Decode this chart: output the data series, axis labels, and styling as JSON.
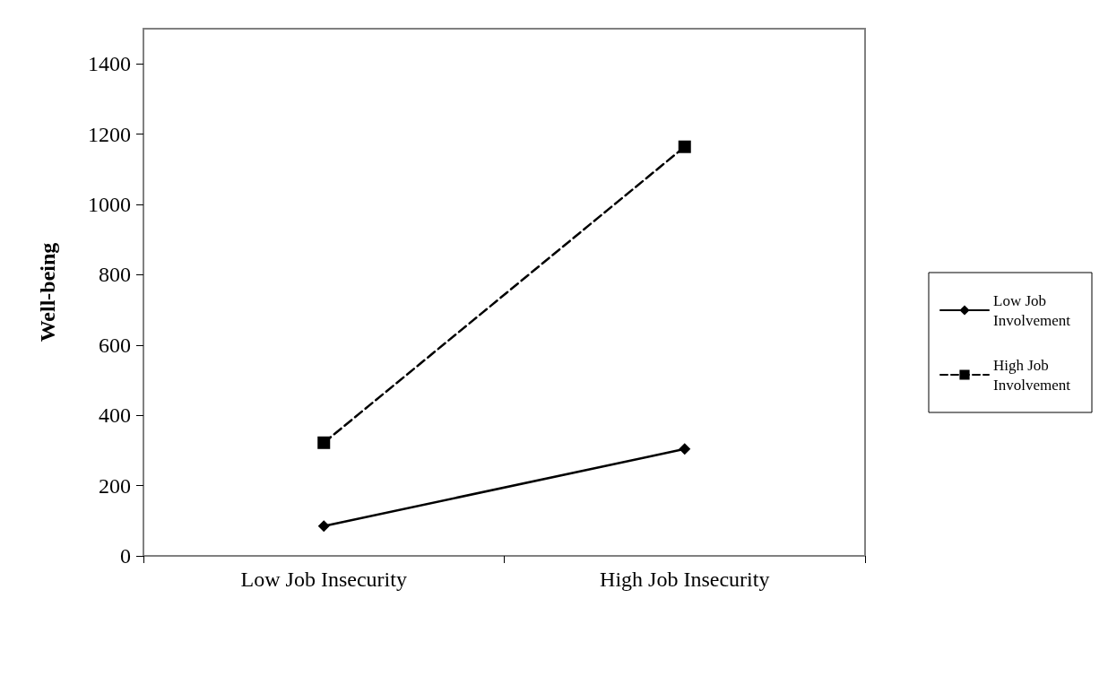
{
  "chart_data": {
    "type": "line",
    "ylabel": "Well-being",
    "categories": [
      "Low Job Insecurity",
      "High Job Insecurity"
    ],
    "series": [
      {
        "name": "Low Job Involvement",
        "color": "#000000",
        "values": [
          85,
          304
        ],
        "marker": "diamond",
        "line_style": "solid"
      },
      {
        "name": "High Job Involvement",
        "color": "#000000",
        "values": [
          322,
          1164
        ],
        "marker": "square",
        "line_style": "dashed"
      }
    ],
    "ylim": [
      0,
      1500
    ],
    "yticks": [
      0,
      200,
      400,
      600,
      800,
      1000,
      1200,
      1400
    ],
    "grid": false,
    "legend": "right"
  }
}
